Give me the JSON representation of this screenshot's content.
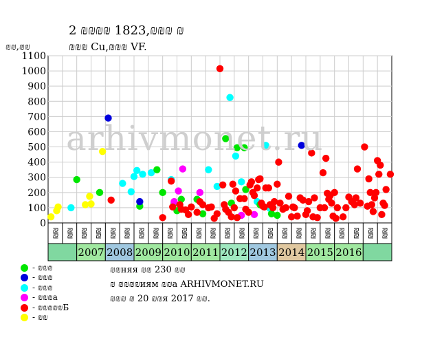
{
  "header": {
    "title_line1": "2 ₪₪₪₪ 1823,₪₪₪ ₪",
    "title_line2": "₪₪₪ Cu,₪₪₪ VF.",
    "ylabel": "₪₪,₪₪"
  },
  "watermark": "arhivmonet.ru",
  "legend": {
    "items": [
      {
        "label": "- ₪₪₪",
        "color": "#00e600"
      },
      {
        "label": "- ₪₪₪",
        "color": "#0000dd"
      },
      {
        "label": "- ₪₪₪",
        "color": "#00ffff"
      },
      {
        "label": "- ₪₪₪а",
        "color": "#ff00ff"
      },
      {
        "label": "- ₪₪₪₪₪Б",
        "color": "#ff0000"
      },
      {
        "label": "- ₪₪",
        "color": "#ffff00"
      }
    ]
  },
  "notes": {
    "line1": "₪₪няя ₪₪ 230 ₪₪",
    "line2": "₪ ₪₪₪₪иям ₪₪а ARHIVMONET.RU",
    "line3": "₪₪₪ ₪ 20 ₪₪я 2017 ₪₪."
  },
  "chart_data": {
    "type": "scatter",
    "ylim": [
      0,
      1100
    ],
    "yticks": [
      0,
      100,
      200,
      300,
      400,
      500,
      600,
      700,
      800,
      900,
      1000,
      1100
    ],
    "half_labels": [
      "₪₪",
      "₪₪",
      "₪₪",
      "₪₪",
      "₪₪",
      "₪₪",
      "₪₪",
      "₪₪",
      "₪₪",
      "₪₪",
      "₪₪",
      "₪₪",
      "₪₪",
      "₪₪",
      "₪₪",
      "₪₪",
      "₪₪",
      "₪₪",
      "₪₪",
      "₪₪",
      "₪₪",
      "₪₪",
      "₪₪",
      "₪₪",
      "₪₪",
      "₪₪",
      "₪₪",
      "₪₪",
      "₪₪",
      "₪₪",
      "₪₪",
      "₪₪",
      "₪₪",
      "₪₪",
      "₪₪",
      "₪₪",
      "₪₪",
      "₪₪",
      "₪₪",
      "₪₪",
      "₪₪",
      "₪₪"
    ],
    "years": [
      {
        "label": "",
        "color": "#80d8a0"
      },
      {
        "label": "2007",
        "color": "#a0e8a0"
      },
      {
        "label": "2008",
        "color": "#a0c8e0"
      },
      {
        "label": "2009",
        "color": "#a0e8a0"
      },
      {
        "label": "2010",
        "color": "#a0e8a0"
      },
      {
        "label": "2011",
        "color": "#a0e8a0"
      },
      {
        "label": "2012",
        "color": "#a0e8c0"
      },
      {
        "label": "2013",
        "color": "#a0c8e0"
      },
      {
        "label": "2014",
        "color": "#e0c8a0"
      },
      {
        "label": "2015",
        "color": "#a0e8a0"
      },
      {
        "label": "2016",
        "color": "#a0e8a0"
      },
      {
        "label": "",
        "color": "#80d8a0"
      }
    ],
    "series": [
      {
        "color": "#ffff00",
        "points": [
          [
            0.1,
            40
          ],
          [
            0.3,
            80
          ],
          [
            0.35,
            105
          ],
          [
            1.3,
            120
          ],
          [
            1.45,
            175
          ],
          [
            1.5,
            125
          ],
          [
            1.9,
            470
          ]
        ]
      },
      {
        "color": "#00ffff",
        "points": [
          [
            0.8,
            100
          ],
          [
            2.6,
            260
          ],
          [
            2.9,
            205
          ],
          [
            3.0,
            305
          ],
          [
            3.1,
            345
          ],
          [
            3.3,
            320
          ],
          [
            3.6,
            330
          ],
          [
            4.3,
            285
          ],
          [
            5.6,
            350
          ],
          [
            5.9,
            240
          ],
          [
            6.35,
            825
          ],
          [
            6.55,
            440
          ],
          [
            6.75,
            270
          ],
          [
            7.3,
            140
          ],
          [
            7.6,
            510
          ],
          [
            7.75,
            95
          ]
        ]
      },
      {
        "color": "#00e600",
        "points": [
          [
            1.0,
            285
          ],
          [
            1.8,
            200
          ],
          [
            3.2,
            110
          ],
          [
            3.8,
            350
          ],
          [
            4.0,
            200
          ],
          [
            4.4,
            130
          ],
          [
            4.5,
            80
          ],
          [
            4.65,
            155
          ],
          [
            5.2,
            155
          ],
          [
            5.4,
            60
          ],
          [
            6.2,
            555
          ],
          [
            6.4,
            130
          ],
          [
            6.6,
            495
          ],
          [
            6.85,
            495
          ],
          [
            6.9,
            220
          ],
          [
            7.4,
            120
          ],
          [
            7.8,
            60
          ],
          [
            8.0,
            50
          ]
        ]
      },
      {
        "color": "#0000dd",
        "points": [
          [
            2.1,
            690
          ],
          [
            3.2,
            140
          ],
          [
            8.85,
            510
          ]
        ]
      },
      {
        "color": "#ff00ff",
        "points": [
          [
            4.4,
            140
          ],
          [
            4.55,
            210
          ],
          [
            4.7,
            355
          ],
          [
            5.3,
            200
          ],
          [
            6.75,
            50
          ],
          [
            7.2,
            55
          ]
        ]
      },
      {
        "color": "#ff0000",
        "points": [
          [
            2.2,
            150
          ],
          [
            4.0,
            35
          ],
          [
            4.3,
            275
          ],
          [
            4.35,
            105
          ],
          [
            4.6,
            120
          ],
          [
            4.65,
            90
          ],
          [
            4.8,
            85
          ],
          [
            4.9,
            55
          ],
          [
            5.0,
            105
          ],
          [
            5.2,
            70
          ],
          [
            5.3,
            140
          ],
          [
            5.4,
            120
          ],
          [
            5.6,
            100
          ],
          [
            5.7,
            105
          ],
          [
            5.8,
            30
          ],
          [
            5.9,
            60
          ],
          [
            6.0,
            1015
          ],
          [
            6.1,
            250
          ],
          [
            6.15,
            120
          ],
          [
            6.2,
            90
          ],
          [
            6.3,
            70
          ],
          [
            6.4,
            40
          ],
          [
            6.45,
            255
          ],
          [
            6.5,
            100
          ],
          [
            6.55,
            210
          ],
          [
            6.6,
            35
          ],
          [
            6.7,
            160
          ],
          [
            6.85,
            160
          ],
          [
            6.9,
            90
          ],
          [
            7.0,
            70
          ],
          [
            7.05,
            250
          ],
          [
            7.1,
            270
          ],
          [
            7.15,
            200
          ],
          [
            7.2,
            180
          ],
          [
            7.3,
            230
          ],
          [
            7.35,
            285
          ],
          [
            7.4,
            290
          ],
          [
            7.45,
            130
          ],
          [
            7.5,
            110
          ],
          [
            7.55,
            105
          ],
          [
            7.6,
            230
          ],
          [
            7.7,
            230
          ],
          [
            7.75,
            120
          ],
          [
            7.85,
            100
          ],
          [
            7.9,
            140
          ],
          [
            8.0,
            255
          ],
          [
            8.05,
            400
          ],
          [
            8.1,
            130
          ],
          [
            8.2,
            90
          ],
          [
            8.3,
            100
          ],
          [
            8.4,
            175
          ],
          [
            8.5,
            40
          ],
          [
            8.55,
            105
          ],
          [
            8.6,
            100
          ],
          [
            8.7,
            45
          ],
          [
            8.8,
            165
          ],
          [
            8.9,
            150
          ],
          [
            9.0,
            55
          ],
          [
            9.05,
            80
          ],
          [
            9.1,
            140
          ],
          [
            9.2,
            460
          ],
          [
            9.25,
            40
          ],
          [
            9.3,
            165
          ],
          [
            9.4,
            35
          ],
          [
            9.5,
            100
          ],
          [
            9.6,
            330
          ],
          [
            9.65,
            100
          ],
          [
            9.7,
            425
          ],
          [
            9.75,
            195
          ],
          [
            9.8,
            155
          ],
          [
            9.85,
            180
          ],
          [
            9.9,
            130
          ],
          [
            9.95,
            45
          ],
          [
            10.0,
            200
          ],
          [
            10.05,
            30
          ],
          [
            10.1,
            100
          ],
          [
            10.3,
            40
          ],
          [
            10.4,
            100
          ],
          [
            10.5,
            170
          ],
          [
            10.6,
            140
          ],
          [
            10.7,
            120
          ],
          [
            10.75,
            165
          ],
          [
            10.8,
            355
          ],
          [
            10.9,
            130
          ],
          [
            11.05,
            500
          ],
          [
            11.15,
            110
          ],
          [
            11.2,
            290
          ],
          [
            11.25,
            200
          ],
          [
            11.3,
            120
          ],
          [
            11.35,
            75
          ],
          [
            11.4,
            165
          ],
          [
            11.45,
            200
          ],
          [
            11.5,
            410
          ],
          [
            11.55,
            320
          ],
          [
            11.6,
            380
          ],
          [
            11.65,
            55
          ],
          [
            11.7,
            130
          ],
          [
            11.75,
            115
          ],
          [
            11.8,
            220
          ],
          [
            11.95,
            320
          ]
        ]
      }
    ]
  }
}
